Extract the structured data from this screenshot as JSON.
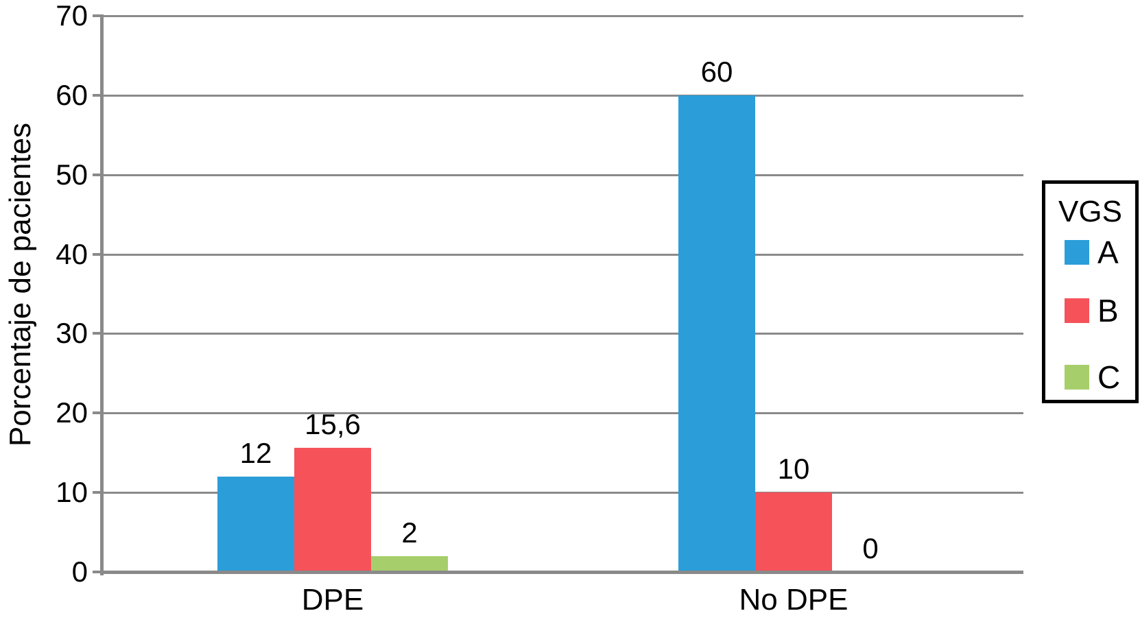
{
  "chart_data": {
    "type": "bar",
    "title": "",
    "xlabel": "",
    "ylabel": "Porcentaje de pacientes",
    "ylim": [
      0,
      70
    ],
    "ytick_step": 10,
    "ytick_labels": [
      "0",
      "10",
      "20",
      "30",
      "40",
      "50",
      "60",
      "70"
    ],
    "grid": true,
    "categories": [
      "DPE",
      "No DPE"
    ],
    "series": [
      {
        "name": "A",
        "color": "#2B9ED9",
        "values": [
          12,
          60
        ],
        "value_labels": [
          "12",
          "60"
        ]
      },
      {
        "name": "B",
        "color": "#F5525A",
        "values": [
          15.6,
          10
        ],
        "value_labels": [
          "15,6",
          "10"
        ]
      },
      {
        "name": "C",
        "color": "#A6CE6B",
        "values": [
          2,
          0
        ],
        "value_labels": [
          "2",
          "0"
        ]
      }
    ],
    "legend": {
      "title": "VGS",
      "position": "right",
      "entries": [
        {
          "label": "A",
          "color": "#2B9ED9"
        },
        {
          "label": "B",
          "color": "#F5525A"
        },
        {
          "label": "C",
          "color": "#A6CE6B"
        }
      ]
    }
  },
  "colors": {
    "background": "#FFFFFF",
    "gridline": "#8A8A8A",
    "axis": "#8A8A8A",
    "text": "#000000",
    "legend_border": "#000000"
  }
}
